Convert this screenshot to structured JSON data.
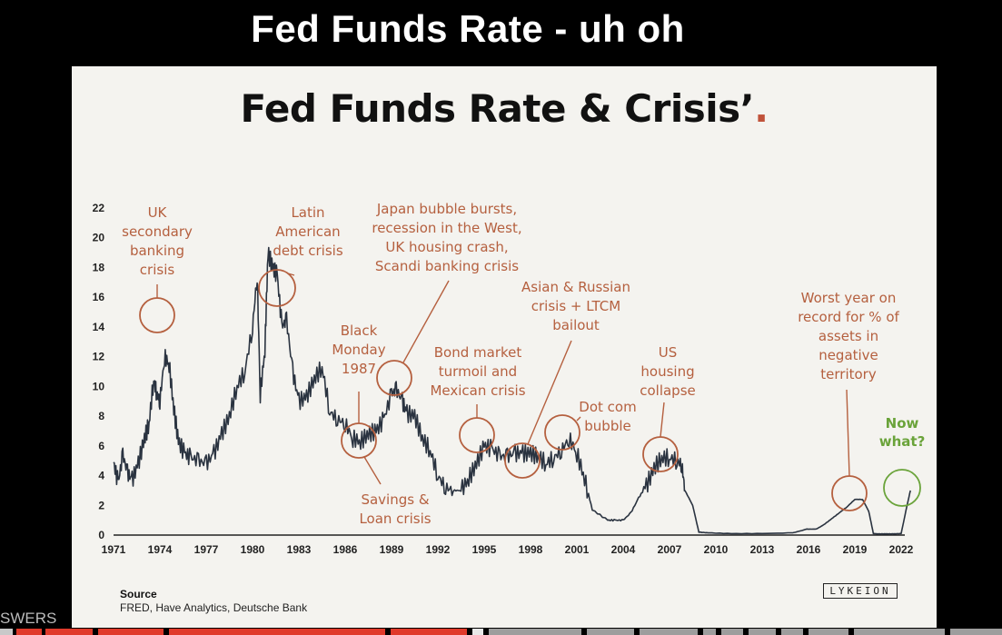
{
  "slide_title": "Fed Funds Rate - uh oh",
  "side_label": "SWERS",
  "chart_data": {
    "type": "line",
    "title": "Fed Funds Rate & Crisis’",
    "title_suffix": ".",
    "xlabel": "",
    "ylabel": "",
    "xlim": [
      1971,
      2022.6
    ],
    "ylim": [
      0,
      22
    ],
    "y_ticks": [
      0,
      2,
      4,
      6,
      8,
      10,
      12,
      14,
      16,
      18,
      20,
      22
    ],
    "x_ticks": [
      1971,
      1974,
      1977,
      1980,
      1983,
      1986,
      1989,
      1992,
      1995,
      1998,
      2001,
      2004,
      2007,
      2010,
      2013,
      2016,
      2019,
      2022
    ],
    "series": [
      {
        "color": "#2a3340",
        "x": [
          1971.0,
          1971.3,
          1971.6,
          1971.9,
          1972.2,
          1972.6,
          1973.0,
          1973.3,
          1973.6,
          1973.8,
          1974.0,
          1974.3,
          1974.6,
          1974.9,
          1975.2,
          1975.6,
          1976.0,
          1976.5,
          1977.0,
          1977.5,
          1978.0,
          1978.5,
          1979.0,
          1979.5,
          1980.0,
          1980.3,
          1980.5,
          1980.8,
          1981.0,
          1981.3,
          1981.6,
          1981.9,
          1982.2,
          1982.6,
          1983.0,
          1983.5,
          1984.0,
          1984.5,
          1985.0,
          1985.5,
          1986.0,
          1986.5,
          1987.0,
          1987.5,
          1988.0,
          1988.5,
          1989.0,
          1989.3,
          1989.7,
          1990.0,
          1990.5,
          1991.0,
          1991.5,
          1992.0,
          1992.5,
          1993.0,
          1993.5,
          1994.0,
          1994.5,
          1995.0,
          1995.5,
          1996.0,
          1996.5,
          1997.0,
          1997.5,
          1998.0,
          1998.5,
          1999.0,
          1999.5,
          2000.0,
          2000.5,
          2001.0,
          2001.5,
          2002.0,
          2003.0,
          2003.5,
          2004.0,
          2004.5,
          2005.0,
          2005.5,
          2006.0,
          2006.5,
          2007.0,
          2007.5,
          2007.8,
          2008.0,
          2008.5,
          2008.9,
          2009.5,
          2011.0,
          2013.0,
          2015.0,
          2015.9,
          2016.5,
          2017.0,
          2017.5,
          2018.0,
          2018.5,
          2019.0,
          2019.5,
          2019.9,
          2020.2,
          2020.5,
          2021.0,
          2021.5,
          2022.0,
          2022.3,
          2022.6
        ],
        "values": [
          4.9,
          3.5,
          5.4,
          4.2,
          3.7,
          4.8,
          6.5,
          7.5,
          10.5,
          9.5,
          9.0,
          12.0,
          11.5,
          8.5,
          6.3,
          5.5,
          5.2,
          5.0,
          4.8,
          5.5,
          6.8,
          8.0,
          10.0,
          11.0,
          14.0,
          17.5,
          9.5,
          12.5,
          19.0,
          18.0,
          17.5,
          14.0,
          14.5,
          11.0,
          9.0,
          9.3,
          10.5,
          11.3,
          8.3,
          7.8,
          7.5,
          6.5,
          6.3,
          6.8,
          7.0,
          7.8,
          9.5,
          9.8,
          9.0,
          8.2,
          8.0,
          6.5,
          5.7,
          4.0,
          3.2,
          3.0,
          3.0,
          3.8,
          4.8,
          6.0,
          5.8,
          5.3,
          5.3,
          5.5,
          5.5,
          5.5,
          5.3,
          4.8,
          5.2,
          5.7,
          6.5,
          5.5,
          3.8,
          1.7,
          1.0,
          1.0,
          1.0,
          1.5,
          2.5,
          3.3,
          4.5,
          5.2,
          5.2,
          5.0,
          4.7,
          3.0,
          2.0,
          0.2,
          0.15,
          0.1,
          0.1,
          0.15,
          0.4,
          0.4,
          0.7,
          1.1,
          1.5,
          1.9,
          2.4,
          2.4,
          1.6,
          0.1,
          0.08,
          0.08,
          0.08,
          0.1,
          1.6,
          3.0
        ]
      }
    ],
    "annotations": [
      {
        "text": [
          "UK",
          "secondary",
          "banking",
          "crisis"
        ],
        "color": "#b5603f"
      },
      {
        "text": [
          "Latin",
          "American",
          "debt crisis"
        ],
        "color": "#b5603f"
      },
      {
        "text": [
          "Japan bubble bursts,",
          "recession in the West,",
          "UK housing crash,",
          "Scandi banking crisis"
        ],
        "color": "#b5603f"
      },
      {
        "text": [
          "Black",
          "Monday",
          "1987"
        ],
        "color": "#b5603f"
      },
      {
        "text": [
          "Savings &",
          "Loan crisis"
        ],
        "color": "#b5603f"
      },
      {
        "text": [
          "Bond market",
          "turmoil and",
          "Mexican crisis"
        ],
        "color": "#b5603f"
      },
      {
        "text": [
          "Asian & Russian",
          "crisis + LTCM",
          "bailout"
        ],
        "color": "#b5603f"
      },
      {
        "text": [
          "Dot com",
          "bubble"
        ],
        "color": "#b5603f"
      },
      {
        "text": [
          "US",
          "housing",
          "collapse"
        ],
        "color": "#b5603f"
      },
      {
        "text": [
          "Worst  year on",
          "record for % of",
          "assets in",
          "negative",
          "territory"
        ],
        "color": "#b5603f"
      },
      {
        "text": [
          "Now",
          "what?"
        ],
        "color": "#6aa33a"
      }
    ]
  },
  "source": {
    "heading": "Source",
    "text": "FRED, Have Analytics, Deutsche Bank"
  },
  "logo_text": "LYKEION",
  "colors": {
    "annotation": "#b5603f",
    "now_what": "#6aa33a",
    "line": "#2a3340",
    "accent_dot": "#c0523a",
    "background": "#f4f3ef"
  }
}
